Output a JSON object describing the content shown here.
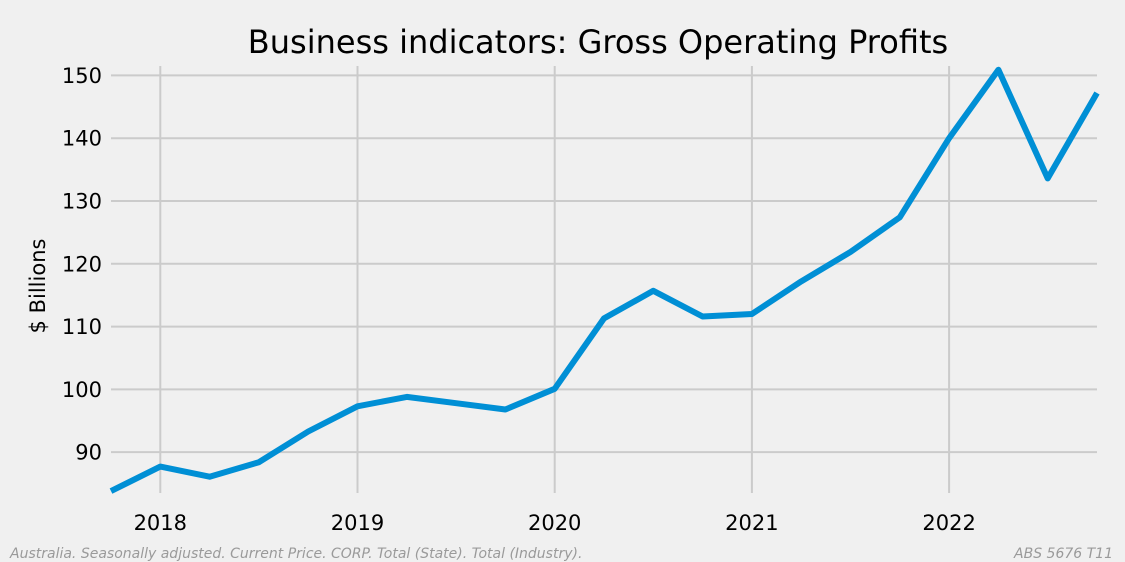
{
  "chart_data": {
    "type": "line",
    "title": "Business indicators: Gross Operating Profits",
    "xlabel": "",
    "ylabel": "$ Billions",
    "xlim": [
      2017.75,
      2022.75
    ],
    "ylim": [
      83.5,
      151.5
    ],
    "x_ticks": [
      2018,
      2019,
      2020,
      2021,
      2022
    ],
    "y_ticks": [
      90,
      100,
      110,
      120,
      130,
      140,
      150
    ],
    "grid": true,
    "legend": "none",
    "series": [
      {
        "color": "#008fd5",
        "x": [
          2017.75,
          2018.0,
          2018.25,
          2018.5,
          2018.75,
          2019.0,
          2019.25,
          2019.5,
          2019.75,
          2020.0,
          2020.25,
          2020.5,
          2020.75,
          2021.0,
          2021.25,
          2021.5,
          2021.75,
          2022.0,
          2022.25,
          2022.5,
          2022.75
        ],
        "values": [
          83.8,
          87.7,
          86.1,
          88.4,
          93.3,
          97.3,
          98.8,
          97.8,
          96.8,
          100.1,
          111.3,
          115.7,
          111.6,
          112.0,
          117.2,
          121.9,
          127.4,
          140.0,
          150.9,
          133.6,
          147.2
        ]
      }
    ]
  },
  "footnote_left": "Australia. Seasonally adjusted. Current Price. CORP. Total (State). Total (Industry).",
  "footnote_right": "ABS 5676 T11"
}
